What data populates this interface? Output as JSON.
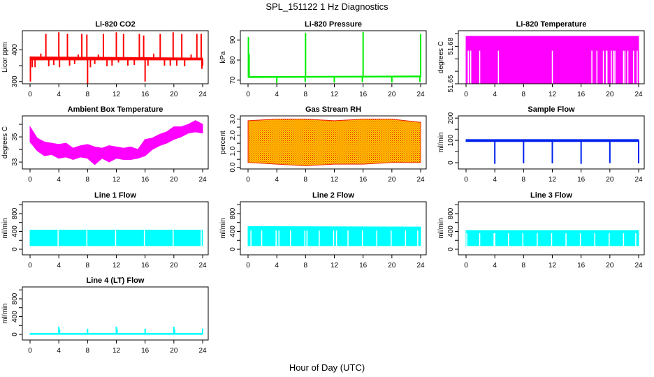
{
  "title": "SPL_151122  1 Hz Diagnostics",
  "xlabel": "Hour of Day (UTC)",
  "chart_data": [
    {
      "type": "line",
      "title": "Li-820 CO2",
      "ylabel": "Licor ppm",
      "color": "#ff0000",
      "xlim": [
        0,
        24
      ],
      "xticks": [
        0,
        4,
        8,
        12,
        16,
        20,
        24
      ],
      "ylim": [
        293,
        460
      ],
      "yticks": [
        {
          "v": 300,
          "label": "300"
        },
        {
          "v": 350,
          "label": ""
        },
        {
          "v": 400,
          "label": "400"
        }
      ],
      "band": [
        [
          0,
          368,
          378
        ],
        [
          24,
          368,
          374
        ]
      ],
      "spikes": {
        "base": 371,
        "events": [
          [
            0.05,
            300
          ],
          [
            0.3,
            345
          ],
          [
            0.7,
            345
          ],
          [
            1.5,
            388
          ],
          [
            2.2,
            450
          ],
          [
            2.6,
            348
          ],
          [
            3.3,
            352
          ],
          [
            4.0,
            455
          ],
          [
            4.1,
            345
          ],
          [
            5.2,
            450
          ],
          [
            5.5,
            350
          ],
          [
            6.2,
            355
          ],
          [
            6.7,
            385
          ],
          [
            7.2,
            450
          ],
          [
            7.9,
            448
          ],
          [
            8.0,
            293
          ],
          [
            8.4,
            345
          ],
          [
            9.0,
            355
          ],
          [
            9.5,
            385
          ],
          [
            10.2,
            450
          ],
          [
            10.7,
            348
          ],
          [
            11.4,
            350
          ],
          [
            12.0,
            455
          ],
          [
            12.3,
            360
          ],
          [
            13.0,
            450
          ],
          [
            13.6,
            350
          ],
          [
            14.5,
            352
          ],
          [
            15.2,
            450
          ],
          [
            15.8,
            445
          ],
          [
            16.0,
            300
          ],
          [
            16.4,
            350
          ],
          [
            17.2,
            388
          ],
          [
            18.1,
            450
          ],
          [
            18.7,
            350
          ],
          [
            19.5,
            350
          ],
          [
            19.9,
            455
          ],
          [
            20.4,
            350
          ],
          [
            21.1,
            450
          ],
          [
            21.5,
            348
          ],
          [
            22.4,
            385
          ],
          [
            23.2,
            450
          ],
          [
            23.8,
            450
          ],
          [
            23.9,
            340
          ],
          [
            24,
            350
          ]
        ]
      }
    },
    {
      "type": "line",
      "title": "Li-820 Pressure",
      "ylabel": "kPa",
      "color": "#00ee00",
      "xlim": [
        0,
        24
      ],
      "xticks": [
        0,
        4,
        8,
        12,
        16,
        20,
        24
      ],
      "ylim": [
        68.2,
        94.6
      ],
      "yticks": [
        {
          "v": 70,
          "label": "70"
        },
        {
          "v": 80,
          "label": "80"
        },
        {
          "v": 90,
          "label": "90"
        }
      ],
      "band": [
        [
          0,
          71.3,
          71.8
        ],
        [
          24,
          71.6,
          72.1
        ]
      ],
      "spikes": {
        "base": 71.6,
        "events": [
          [
            0.05,
            91.5
          ],
          [
            0.15,
            83
          ],
          [
            4.0,
            68.5
          ],
          [
            8.0,
            93.5
          ],
          [
            7.95,
            69
          ],
          [
            12.0,
            68.8
          ],
          [
            16.0,
            94
          ],
          [
            15.9,
            69
          ],
          [
            20.0,
            68.8
          ],
          [
            24.0,
            93
          ],
          [
            23.9,
            69
          ]
        ]
      }
    },
    {
      "type": "area",
      "title": "Li-820 Temperature",
      "ylabel": "degrees C",
      "color": "#ff00ff",
      "xlim": [
        0,
        24
      ],
      "xticks": [
        0,
        4,
        8,
        12,
        16,
        20,
        24
      ],
      "ylim": [
        51.65,
        51.6925
      ],
      "yticks": [
        {
          "v": 51.65,
          "label": "51.65"
        },
        {
          "v": 51.66,
          "label": ""
        },
        {
          "v": 51.67,
          "label": ""
        },
        {
          "v": 51.68,
          "label": "51.68"
        },
        {
          "v": 51.69,
          "label": ""
        }
      ],
      "band": [
        [
          0,
          51.65,
          51.688
        ],
        [
          24,
          51.65,
          51.688
        ]
      ],
      "gaps": {
        "top": 51.6765,
        "hours": [
          0.3,
          0.35,
          0.65,
          1.9,
          4.5,
          12.0,
          17.5,
          18.2,
          19.1,
          19.5,
          19.6,
          20.2,
          20.5,
          20.7,
          21.9,
          22.1,
          22.5,
          23.3,
          23.8
        ]
      }
    },
    {
      "type": "area",
      "title": "Ambient Box Temperature",
      "ylabel": "degrees C",
      "color": "#ff00ff",
      "xlim": [
        0,
        24
      ],
      "xticks": [
        0,
        4,
        8,
        12,
        16,
        20,
        24
      ],
      "ylim": [
        32.45,
        36.67
      ],
      "yticks": [
        {
          "v": 33,
          "label": "33"
        },
        {
          "v": 34,
          "label": ""
        },
        {
          "v": 35,
          "label": "35"
        },
        {
          "v": 36,
          "label": ""
        }
      ],
      "band": [
        [
          0,
          34.6,
          35.8
        ],
        [
          1,
          33.9,
          34.9
        ],
        [
          2,
          33.5,
          34.6
        ],
        [
          3,
          33.6,
          34.5
        ],
        [
          4,
          33.3,
          34.4
        ],
        [
          5,
          33.4,
          34.5
        ],
        [
          6,
          33.2,
          34.1
        ],
        [
          7,
          33.4,
          34.3
        ],
        [
          8,
          33.3,
          34.4
        ],
        [
          9,
          32.8,
          34.2
        ],
        [
          10,
          33.3,
          34.1
        ],
        [
          11,
          33.0,
          34.3
        ],
        [
          12,
          33.3,
          34.2
        ],
        [
          13,
          33.2,
          34.1
        ],
        [
          14,
          33.2,
          34.2
        ],
        [
          15,
          33.3,
          34.0
        ],
        [
          16,
          33.5,
          34.8
        ],
        [
          17,
          34.0,
          34.9
        ],
        [
          18,
          34.3,
          35.2
        ],
        [
          19,
          34.5,
          35.4
        ],
        [
          20,
          34.8,
          35.8
        ],
        [
          21,
          35.0,
          35.8
        ],
        [
          22,
          35.3,
          36.0
        ],
        [
          23,
          35.4,
          36.3
        ],
        [
          24,
          35.3,
          36.0
        ]
      ]
    },
    {
      "type": "area",
      "title": "Gas Stream RH",
      "ylabel": "percent",
      "color": "#ffcc00",
      "color2": "#ee2200",
      "xlim": [
        0,
        24
      ],
      "xticks": [
        0,
        4,
        8,
        12,
        16,
        20,
        24
      ],
      "ylim": [
        -0.1,
        3.2
      ],
      "yticks": [
        {
          "v": 0,
          "label": "0.0"
        },
        {
          "v": 0.5,
          "label": ""
        },
        {
          "v": 1,
          "label": "1.0"
        },
        {
          "v": 1.5,
          "label": ""
        },
        {
          "v": 2,
          "label": "2.0"
        },
        {
          "v": 2.5,
          "label": ""
        },
        {
          "v": 3,
          "label": "3.0"
        }
      ],
      "band": [
        [
          0,
          0.3,
          2.9
        ],
        [
          4,
          0.2,
          3.0
        ],
        [
          8,
          0.1,
          3.0
        ],
        [
          12,
          0.2,
          2.9
        ],
        [
          16,
          0.2,
          3.0
        ],
        [
          20,
          0.3,
          3.0
        ],
        [
          24,
          0.3,
          2.8
        ]
      ]
    },
    {
      "type": "line",
      "title": "Sample Flow",
      "ylabel": "ml/min",
      "color": "#0022ee",
      "xlim": [
        0,
        24
      ],
      "xticks": [
        0,
        4,
        8,
        12,
        16,
        20,
        24
      ],
      "ylim": [
        -28,
        210
      ],
      "yticks": [
        {
          "v": 0,
          "label": "0"
        },
        {
          "v": 50,
          "label": ""
        },
        {
          "v": 100,
          "label": "100"
        },
        {
          "v": 150,
          "label": ""
        },
        {
          "v": 200,
          "label": "200"
        }
      ],
      "band": [
        [
          0,
          95,
          104
        ],
        [
          24,
          95,
          104
        ]
      ],
      "spikes": {
        "base": 100,
        "events": [
          [
            4.0,
            -5
          ],
          [
            8.0,
            -3
          ],
          [
            12.0,
            -3
          ],
          [
            16.0,
            -5
          ],
          [
            20.0,
            -2
          ],
          [
            24.0,
            -3
          ]
        ]
      }
    },
    {
      "type": "area",
      "title": "Line 1 Flow",
      "ylabel": "ml/min",
      "color": "#00ffff",
      "xlim": [
        0,
        24
      ],
      "xticks": [
        0,
        4,
        8,
        12,
        16,
        20,
        24
      ],
      "ylim": [
        -125,
        1066
      ],
      "yticks": [
        {
          "v": 0,
          "label": "0"
        },
        {
          "v": 200,
          "label": ""
        },
        {
          "v": 400,
          "label": "400"
        },
        {
          "v": 600,
          "label": ""
        },
        {
          "v": 800,
          "label": "800"
        },
        {
          "v": 1000,
          "label": ""
        }
      ],
      "band": [
        [
          0,
          80,
          430
        ],
        [
          24,
          80,
          430
        ]
      ],
      "gaps": {
        "top": 430,
        "hours": [
          3.9,
          7.9,
          11.9,
          15.9,
          19.9,
          23.8
        ]
      }
    },
    {
      "type": "area",
      "title": "Line 2 Flow",
      "ylabel": "ml/min",
      "color": "#00ffff",
      "xlim": [
        0,
        24
      ],
      "xticks": [
        0,
        4,
        8,
        12,
        16,
        20,
        24
      ],
      "ylim": [
        -125,
        1066
      ],
      "yticks": [
        {
          "v": 0,
          "label": "0"
        },
        {
          "v": 200,
          "label": ""
        },
        {
          "v": 400,
          "label": "400"
        },
        {
          "v": 600,
          "label": ""
        },
        {
          "v": 800,
          "label": "800"
        },
        {
          "v": 1000,
          "label": ""
        }
      ],
      "band": [
        [
          0,
          80,
          510
        ],
        [
          24,
          80,
          500
        ]
      ],
      "gaps": {
        "top": 420,
        "hours": [
          0.4,
          1.9,
          3.9,
          4.3,
          5.9,
          7.9,
          8.2,
          9.9,
          11.9,
          12.3,
          13.9,
          15.9,
          17.9,
          19.9,
          21.9,
          23.6
        ]
      }
    },
    {
      "type": "area",
      "title": "Line 3 Flow",
      "ylabel": "ml/min",
      "color": "#00ffff",
      "xlim": [
        0,
        24
      ],
      "xticks": [
        0,
        4,
        8,
        12,
        16,
        20,
        24
      ],
      "ylim": [
        -125,
        1066
      ],
      "yticks": [
        {
          "v": 0,
          "label": "0"
        },
        {
          "v": 200,
          "label": ""
        },
        {
          "v": 400,
          "label": "400"
        },
        {
          "v": 600,
          "label": ""
        },
        {
          "v": 800,
          "label": "800"
        },
        {
          "v": 1000,
          "label": ""
        }
      ],
      "band": [
        [
          0,
          80,
          420
        ],
        [
          24,
          80,
          420
        ]
      ],
      "gaps": {
        "top": 360,
        "hours": [
          0.1,
          1.9,
          3.9,
          4.0,
          5.9,
          7.9,
          9.9,
          11.9,
          13.9,
          15.9,
          17.9,
          19.9,
          21.9,
          23.6
        ]
      }
    },
    {
      "type": "line",
      "title": "Line 4 (LT) Flow",
      "ylabel": "ml/min",
      "color": "#00ffff",
      "xlim": [
        0,
        24
      ],
      "xticks": [
        0,
        4,
        8,
        12,
        16,
        20,
        24
      ],
      "ylim": [
        -125,
        1066
      ],
      "yticks": [
        {
          "v": 0,
          "label": "0"
        },
        {
          "v": 200,
          "label": ""
        },
        {
          "v": 400,
          "label": "400"
        },
        {
          "v": 600,
          "label": ""
        },
        {
          "v": 800,
          "label": "800"
        },
        {
          "v": 1000,
          "label": ""
        }
      ],
      "band": [
        [
          0,
          0,
          25
        ],
        [
          24,
          0,
          25
        ]
      ],
      "spikes": {
        "base": 10,
        "events": [
          [
            4.0,
            175
          ],
          [
            4.1,
            120
          ],
          [
            8.0,
            130
          ],
          [
            12.0,
            175
          ],
          [
            12.1,
            120
          ],
          [
            16.0,
            130
          ],
          [
            20.0,
            175
          ],
          [
            20.1,
            120
          ],
          [
            24.0,
            130
          ]
        ]
      }
    }
  ]
}
